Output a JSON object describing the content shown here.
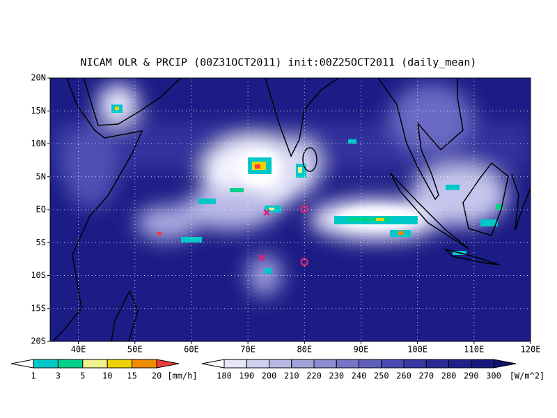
{
  "title": "NICAM OLR & PRCIP (00Z31OCT2011) init:00Z25OCT2011 (daily_mean)",
  "map": {
    "lat_labels": [
      "20N",
      "15N",
      "10N",
      "5N",
      "EQ",
      "5S",
      "10S",
      "15S",
      "20S"
    ],
    "lon_labels": [
      "40E",
      "50E",
      "60E",
      "70E",
      "80E",
      "90E",
      "100E",
      "110E",
      "120E"
    ]
  },
  "legend_precip": {
    "labels": [
      "1",
      "3",
      "5",
      "10",
      "15",
      "20"
    ],
    "unit": "[mm/h]"
  },
  "legend_olr": {
    "labels": [
      "180",
      "190",
      "200",
      "210",
      "220",
      "230",
      "240",
      "250",
      "260",
      "270",
      "280",
      "290",
      "300"
    ],
    "unit": "[W/m^2]"
  }
}
